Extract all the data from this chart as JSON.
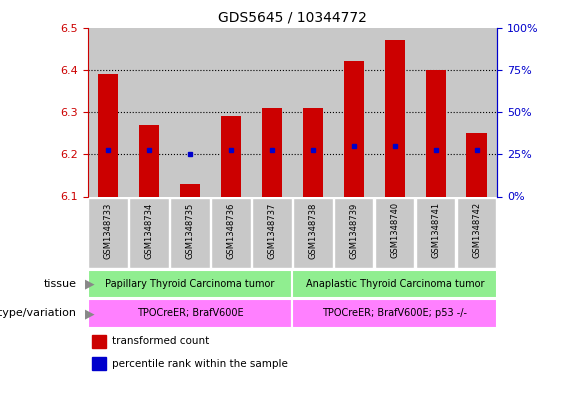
{
  "title": "GDS5645 / 10344772",
  "samples": [
    "GSM1348733",
    "GSM1348734",
    "GSM1348735",
    "GSM1348736",
    "GSM1348737",
    "GSM1348738",
    "GSM1348739",
    "GSM1348740",
    "GSM1348741",
    "GSM1348742"
  ],
  "red_values": [
    6.39,
    6.27,
    6.13,
    6.29,
    6.31,
    6.31,
    6.42,
    6.47,
    6.4,
    6.25
  ],
  "blue_values": [
    6.21,
    6.21,
    6.2,
    6.21,
    6.21,
    6.21,
    6.22,
    6.22,
    6.21,
    6.21
  ],
  "ylim": [
    6.1,
    6.5
  ],
  "yticks_left": [
    6.1,
    6.2,
    6.3,
    6.4,
    6.5
  ],
  "yticks_right": [
    0,
    25,
    50,
    75,
    100
  ],
  "bar_base": 6.1,
  "tissue_groups": [
    {
      "label": "Papillary Thyroid Carcinoma tumor",
      "start": 0,
      "end": 5,
      "color": "#90EE90"
    },
    {
      "label": "Anaplastic Thyroid Carcinoma tumor",
      "start": 5,
      "end": 10,
      "color": "#90EE90"
    }
  ],
  "genotype_groups": [
    {
      "label": "TPOCreER; BrafV600E",
      "start": 0,
      "end": 5,
      "color": "#FF80FF"
    },
    {
      "label": "TPOCreER; BrafV600E; p53 -/-",
      "start": 5,
      "end": 10,
      "color": "#FF80FF"
    }
  ],
  "tissue_label": "tissue",
  "genotype_label": "genotype/variation",
  "legend_red": "transformed count",
  "legend_blue": "percentile rank within the sample",
  "bar_color": "#CC0000",
  "blue_color": "#0000CC",
  "grid_color": "black",
  "bg_color": "#C8C8C8",
  "left_axis_color": "#CC0000",
  "right_axis_color": "#0000CC",
  "bar_width": 0.5
}
